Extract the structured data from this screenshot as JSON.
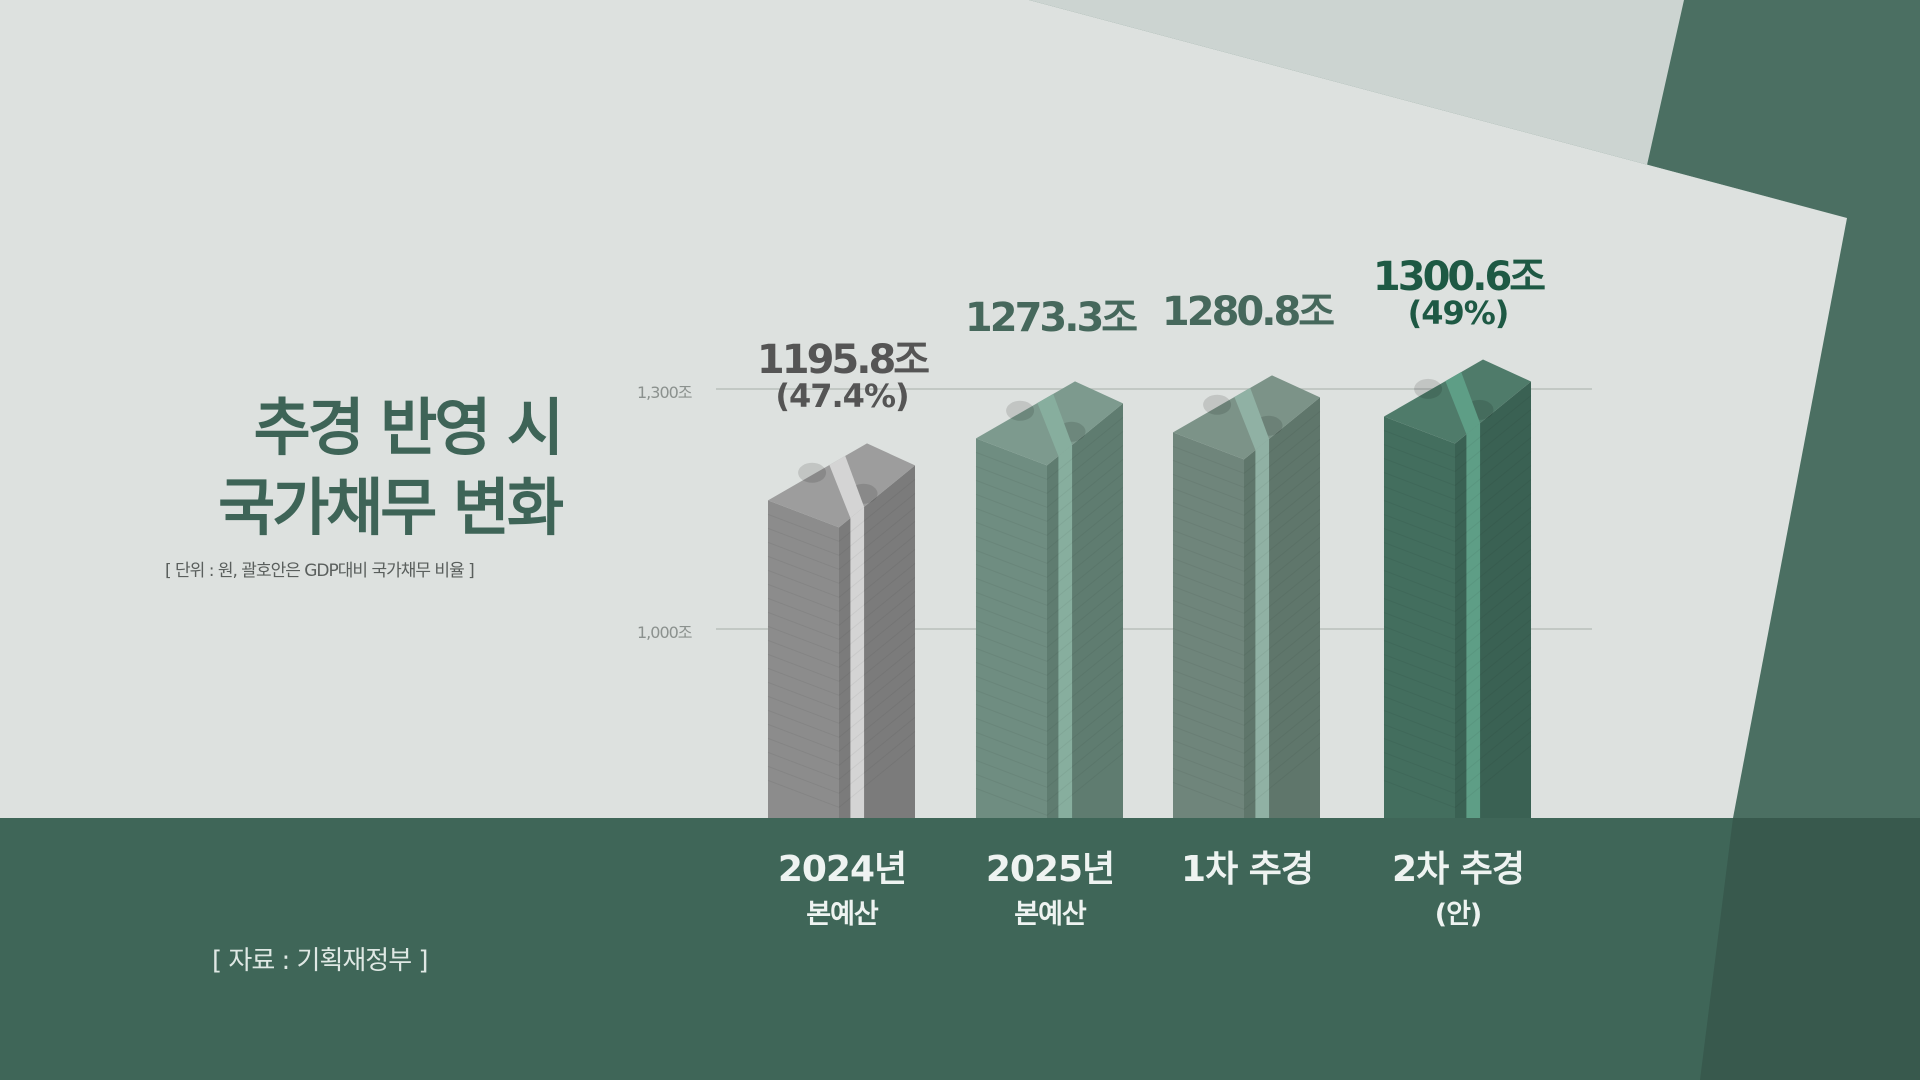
{
  "title": {
    "line1": "추경 반영 시",
    "line2": "국가채무 변화"
  },
  "unit_note": "[ 단위 : 원, 괄호안은 GDP대비 국가채무 비율 ]",
  "source": "[ 자료 : 기획재정부 ]",
  "chart_data": {
    "type": "bar",
    "categories": [
      {
        "line1": "2024년",
        "line2": "본예산"
      },
      {
        "line1": "2025년",
        "line2": "본예산"
      },
      {
        "line1": "1차 추경",
        "line2": ""
      },
      {
        "line1": "2차 추경",
        "line2": "(안)"
      }
    ],
    "values": [
      1195.8,
      1273.3,
      1280.8,
      1300.6
    ],
    "value_labels": [
      "1195.8조",
      "1273.3조",
      "1280.8조",
      "1300.6조"
    ],
    "ratio_labels": [
      "(47.4%)",
      "",
      "",
      "(49%)"
    ],
    "unit": "조",
    "yticks": [
      1000,
      1300
    ],
    "ytick_labels": [
      "1,000조",
      "1,300조"
    ],
    "grid": true,
    "colors": {
      "bars": [
        {
          "left": "#8c8c8c",
          "right": "#7b7b7b",
          "top": "#9d9d9d",
          "strap": "#d4d4d4",
          "label": "#555555"
        },
        {
          "left": "#6f8d81",
          "right": "#5f7c70",
          "top": "#7d9a8e",
          "strap": "#87ae9e",
          "label": "#46685c"
        },
        {
          "left": "#6f857b",
          "right": "#5f766b",
          "top": "#7c9388",
          "strap": "#90b1a4",
          "label": "#46685c"
        },
        {
          "left": "#436e5e",
          "right": "#3a6153",
          "top": "#4f7b6a",
          "strap": "#5e9e86",
          "label": "#1e5944"
        }
      ],
      "band": "#3f6658",
      "title": "#3e6457"
    }
  }
}
